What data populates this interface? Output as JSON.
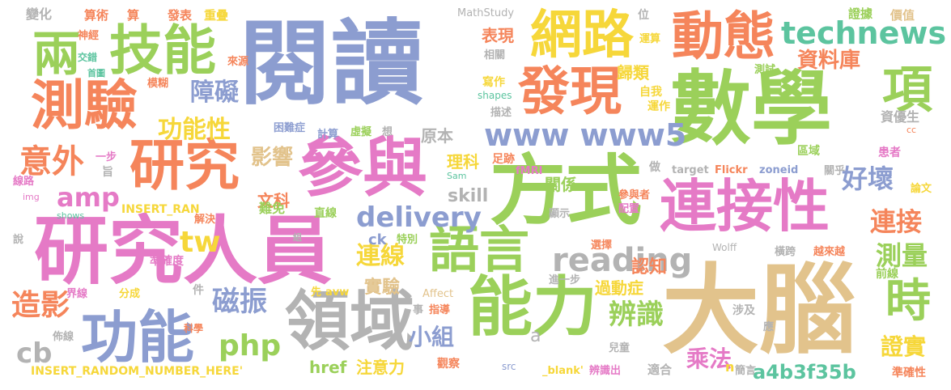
{
  "palette": {
    "blue": "#8c9dd0",
    "green": "#9bd05a",
    "orange": "#f5855b",
    "pink": "#e57ac6",
    "yellow": "#f6d73a",
    "tan": "#e2c38c",
    "teal": "#5cc49f",
    "gray": "#b3b3b3"
  },
  "words": [
    {
      "text": "閱讀",
      "color": "#8c9dd0"
    },
    {
      "text": "數學",
      "color": "#9bd05a"
    },
    {
      "text": "大腦",
      "color": "#e2c38c"
    },
    {
      "text": "研究人員",
      "color": "#e57ac6"
    },
    {
      "text": "方式",
      "color": "#9bd05a"
    },
    {
      "text": "能力",
      "color": "#9bd05a"
    },
    {
      "text": "參與",
      "color": "#e57ac6"
    },
    {
      "text": "連接性",
      "color": "#e57ac6"
    },
    {
      "text": "領域",
      "color": "#b3b3b3"
    },
    {
      "text": "網路",
      "color": "#f6d73a"
    },
    {
      "text": "動態",
      "color": "#f5855b"
    },
    {
      "text": "發現",
      "color": "#f5855b"
    },
    {
      "text": "研究",
      "color": "#f5855b"
    },
    {
      "text": "測驗",
      "color": "#f5855b"
    },
    {
      "text": "技能",
      "color": "#9bd05a"
    },
    {
      "text": "功能",
      "color": "#8c9dd0"
    },
    {
      "text": "語言",
      "color": "#9bd05a"
    },
    {
      "text": "兩",
      "color": "#9bd05a"
    },
    {
      "text": "項",
      "color": "#9bd05a"
    },
    {
      "text": "時",
      "color": "#9bd05a"
    },
    {
      "text": "technews",
      "color": "#5cc49f"
    },
    {
      "text": "reading",
      "color": "#b3b3b3"
    },
    {
      "text": "www www5",
      "color": "#8c9dd0"
    },
    {
      "text": "delivery",
      "color": "#8c9dd0"
    },
    {
      "text": "amp",
      "color": "#e57ac6"
    },
    {
      "text": "tw",
      "color": "#f6d73a"
    },
    {
      "text": "php",
      "color": "#9bd05a"
    },
    {
      "text": "cb",
      "color": "#b3b3b3"
    },
    {
      "text": "意外",
      "color": "#f5855b"
    },
    {
      "text": "障礙",
      "color": "#8c9dd0"
    },
    {
      "text": "功能性",
      "color": "#f6d73a"
    },
    {
      "text": "影響",
      "color": "#e2c38c"
    },
    {
      "text": "資料庫",
      "color": "#f5855b"
    },
    {
      "text": "好壞",
      "color": "#8c9dd0"
    },
    {
      "text": "連接",
      "color": "#f5855b"
    },
    {
      "text": "測量",
      "color": "#9bd05a"
    },
    {
      "text": "連線",
      "color": "#f6d73a"
    },
    {
      "text": "磁振",
      "color": "#8c9dd0"
    },
    {
      "text": "造影",
      "color": "#f5855b"
    },
    {
      "text": "辨識",
      "color": "#9bd05a"
    },
    {
      "text": "認知",
      "color": "#f5855b"
    },
    {
      "text": "乘法",
      "color": "#e57ac6"
    },
    {
      "text": "證實",
      "color": "#f6d73a"
    },
    {
      "text": "小組",
      "color": "#8c9dd0"
    },
    {
      "text": "skill",
      "color": "#b3b3b3"
    },
    {
      "text": "a4b3f35b",
      "color": "#5cc49f"
    },
    {
      "text": "過動症",
      "color": "#f6d73a"
    },
    {
      "text": "實驗",
      "color": "#e2c38c"
    },
    {
      "text": "表現",
      "color": "#f5855b"
    },
    {
      "text": "歸類",
      "color": "#f6d73a"
    },
    {
      "text": "文科",
      "color": "#f5855b"
    },
    {
      "text": "理科",
      "color": "#f6d73a"
    },
    {
      "text": "關係",
      "color": "#9bd05a"
    },
    {
      "text": "原本",
      "color": "#b3b3b3"
    },
    {
      "text": "注意力",
      "color": "#f6d73a"
    },
    {
      "text": "href",
      "color": "#9bd05a"
    },
    {
      "text": "ck",
      "color": "#8c9dd0"
    },
    {
      "text": "INSERT_RANDOM_NUMBER_HERE'",
      "color": "#f6d73a"
    },
    {
      "text": "INSERT_RAN",
      "color": "#f6d73a"
    },
    {
      "text": "MathStudy",
      "color": "#b3b3b3"
    },
    {
      "text": "變化",
      "color": "#b3b3b3"
    },
    {
      "text": "算術",
      "color": "#f5855b"
    },
    {
      "text": "算",
      "color": "#f5855b"
    },
    {
      "text": "發表",
      "color": "#f5855b"
    },
    {
      "text": "重疊",
      "color": "#f6d73a"
    },
    {
      "text": "位",
      "color": "#b3b3b3"
    },
    {
      "text": "運算",
      "color": "#f6d73a"
    },
    {
      "text": "相關",
      "color": "#b3b3b3"
    },
    {
      "text": "寫作",
      "color": "#f6d73a"
    },
    {
      "text": "自我",
      "color": "#f6d73a"
    },
    {
      "text": "運作",
      "color": "#f6d73a"
    },
    {
      "text": "shapes",
      "color": "#5cc49f"
    },
    {
      "text": "描述",
      "color": "#b3b3b3"
    },
    {
      "text": "神經",
      "color": "#f5855b"
    },
    {
      "text": "交錯",
      "color": "#5cc49f"
    },
    {
      "text": "首圖",
      "color": "#5cc49f"
    },
    {
      "text": "模糊",
      "color": "#f5855b"
    },
    {
      "text": "來源",
      "color": "#f5855b"
    },
    {
      "text": "困難症",
      "color": "#8c9dd0"
    },
    {
      "text": "虛擬",
      "color": "#9bd05a"
    },
    {
      "text": "計算",
      "color": "#8c9dd0"
    },
    {
      "text": "想",
      "color": "#b3b3b3"
    },
    {
      "text": "資優生",
      "color": "#b3b3b3"
    },
    {
      "text": "證據",
      "color": "#9bd05a"
    },
    {
      "text": "價值",
      "color": "#e2c38c"
    },
    {
      "text": "測試",
      "color": "#9bd05a"
    },
    {
      "text": "cc",
      "color": "#f5855b"
    },
    {
      "text": "患者",
      "color": "#e57ac6"
    },
    {
      "text": "區域",
      "color": "#9bd05a"
    },
    {
      "text": "關乎",
      "color": "#b3b3b3"
    },
    {
      "text": "論文",
      "color": "#f6d73a"
    },
    {
      "text": "一步",
      "color": "#e57ac6"
    },
    {
      "text": "旨",
      "color": "#b3b3b3"
    },
    {
      "text": "足跡",
      "color": "#f5855b"
    },
    {
      "text": "fMRI",
      "color": "#e57ac6"
    },
    {
      "text": "Sam",
      "color": "#5cc49f"
    },
    {
      "text": "target",
      "color": "#b3b3b3"
    },
    {
      "text": "Flickr",
      "color": "#f5855b"
    },
    {
      "text": "zoneid",
      "color": "#8c9dd0"
    },
    {
      "text": "做",
      "color": "#b3b3b3"
    },
    {
      "text": "線路",
      "color": "#e57ac6"
    },
    {
      "text": "img",
      "color": "#e57ac6"
    },
    {
      "text": "shows",
      "color": "#5cc49f"
    },
    {
      "text": "難免",
      "color": "#9bd05a"
    },
    {
      "text": "直線",
      "color": "#9bd05a"
    },
    {
      "text": "解決",
      "color": "#f5855b"
    },
    {
      "text": "顯示",
      "color": "#b3b3b3"
    },
    {
      "text": "參與者",
      "color": "#f5855b"
    },
    {
      "text": "配置",
      "color": "#e57ac6"
    },
    {
      "text": "組",
      "color": "#b3b3b3"
    },
    {
      "text": "說",
      "color": "#b3b3b3"
    },
    {
      "text": "特別",
      "color": "#9bd05a"
    },
    {
      "text": "準確度",
      "color": "#e57ac6"
    },
    {
      "text": "選擇",
      "color": "#f5855b"
    },
    {
      "text": "Wolff",
      "color": "#b3b3b3"
    },
    {
      "text": "橫跨",
      "color": "#b3b3b3"
    },
    {
      "text": "越來越",
      "color": "#f5855b"
    },
    {
      "text": "前線",
      "color": "#9bd05a"
    },
    {
      "text": "進一步",
      "color": "#b3b3b3"
    },
    {
      "text": "界線",
      "color": "#e57ac6"
    },
    {
      "text": "分成",
      "color": "#f6d73a"
    },
    {
      "text": "件",
      "color": "#b3b3b3"
    },
    {
      "text": "先",
      "color": "#f6d73a"
    },
    {
      "text": "avw",
      "color": "#f6d73a"
    },
    {
      "text": "Affect",
      "color": "#e2c38c"
    },
    {
      "text": "事",
      "color": "#b3b3b3"
    },
    {
      "text": "指導",
      "color": "#f5855b"
    },
    {
      "text": "涉及",
      "color": "#b3b3b3"
    },
    {
      "text": "佈線",
      "color": "#b3b3b3"
    },
    {
      "text": "科學",
      "color": "#f5855b"
    },
    {
      "text": "a",
      "color": "#b3b3b3"
    },
    {
      "text": "應",
      "color": "#b3b3b3"
    },
    {
      "text": "兒童",
      "color": "#b3b3b3"
    },
    {
      "text": "適合",
      "color": "#b3b3b3"
    },
    {
      "text": "觀察",
      "color": "#f5855b"
    },
    {
      "text": "src",
      "color": "#8c9dd0"
    },
    {
      "text": "_blank'",
      "color": "#f6d73a"
    },
    {
      "text": "辨識出",
      "color": "#e57ac6"
    },
    {
      "text": "簡言",
      "color": "#b3b3b3"
    },
    {
      "text": "n",
      "color": "#f6d73a"
    },
    {
      "text": "準確性",
      "color": "#f5855b"
    }
  ]
}
